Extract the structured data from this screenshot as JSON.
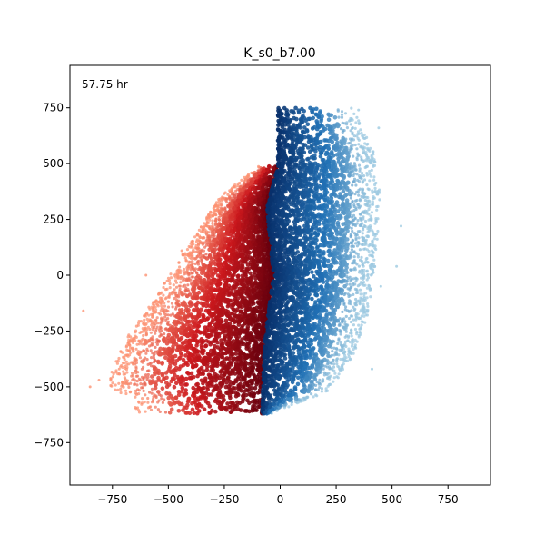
{
  "chart_data": {
    "type": "scatter",
    "title": "K_s0_b7.00",
    "annotation": "57.75 hr",
    "xlabel": "",
    "ylabel": "",
    "xlim": [
      -940,
      940
    ],
    "ylim": [
      -940,
      940
    ],
    "xticks": [
      -750,
      -500,
      -250,
      0,
      250,
      500,
      750
    ],
    "yticks": [
      -750,
      -500,
      -250,
      0,
      250,
      500,
      750
    ],
    "xtick_labels": [
      "−750",
      "−500",
      "−250",
      "0",
      "250",
      "500",
      "750"
    ],
    "ytick_labels": [
      "−750",
      "−500",
      "−250",
      "0",
      "250",
      "500",
      "750"
    ],
    "grid": false,
    "colors": {
      "red_dark": "#67000d",
      "red_mid": "#cb181d",
      "red_light": "#fc9272",
      "blue_dark": "#08306b",
      "blue_mid": "#2171b5",
      "blue_light": "#9ecae1"
    },
    "series": [
      {
        "group": "left",
        "colormap": "Reds",
        "bounds": {
          "y_range": [
            -620,
            490
          ],
          "divider_x_at": [
            [
              -80,
              -560
            ],
            [
              -70,
              -300
            ],
            [
              -30,
              0
            ],
            [
              -60,
              300
            ],
            [
              -10,
              490
            ]
          ],
          "outer_left_x_at": [
            [
              -650,
              -560
            ],
            [
              -780,
              -500
            ],
            [
              -700,
              -300
            ],
            [
              -560,
              -100
            ],
            [
              -400,
              150
            ],
            [
              -270,
              350
            ],
            [
              -100,
              490
            ]
          ]
        },
        "stragglers": [
          [
            -880,
            -160
          ],
          [
            -850,
            -500
          ],
          [
            -810,
            -470
          ],
          [
            -720,
            -420
          ],
          [
            -600,
            0
          ],
          [
            -440,
            110
          ],
          [
            -370,
            180
          ]
        ]
      },
      {
        "group": "right",
        "colormap": "Blues",
        "bounds": {
          "y_range": [
            -620,
            750
          ],
          "divider_x_at": [
            [
              -80,
              -560
            ],
            [
              -70,
              -300
            ],
            [
              -30,
              0
            ],
            [
              -60,
              300
            ],
            [
              -10,
              490
            ]
          ],
          "outer_right_x_at": [
            [
              -40,
              -620
            ],
            [
              220,
              -520
            ],
            [
              330,
              -350
            ],
            [
              400,
              -150
            ],
            [
              430,
              100
            ],
            [
              450,
              350
            ],
            [
              420,
              550
            ],
            [
              330,
              750
            ]
          ]
        },
        "stragglers": [
          [
            540,
            220
          ],
          [
            520,
            40
          ],
          [
            450,
            -50
          ],
          [
            440,
            660
          ],
          [
            350,
            740
          ],
          [
            410,
            -420
          ]
        ]
      }
    ]
  }
}
